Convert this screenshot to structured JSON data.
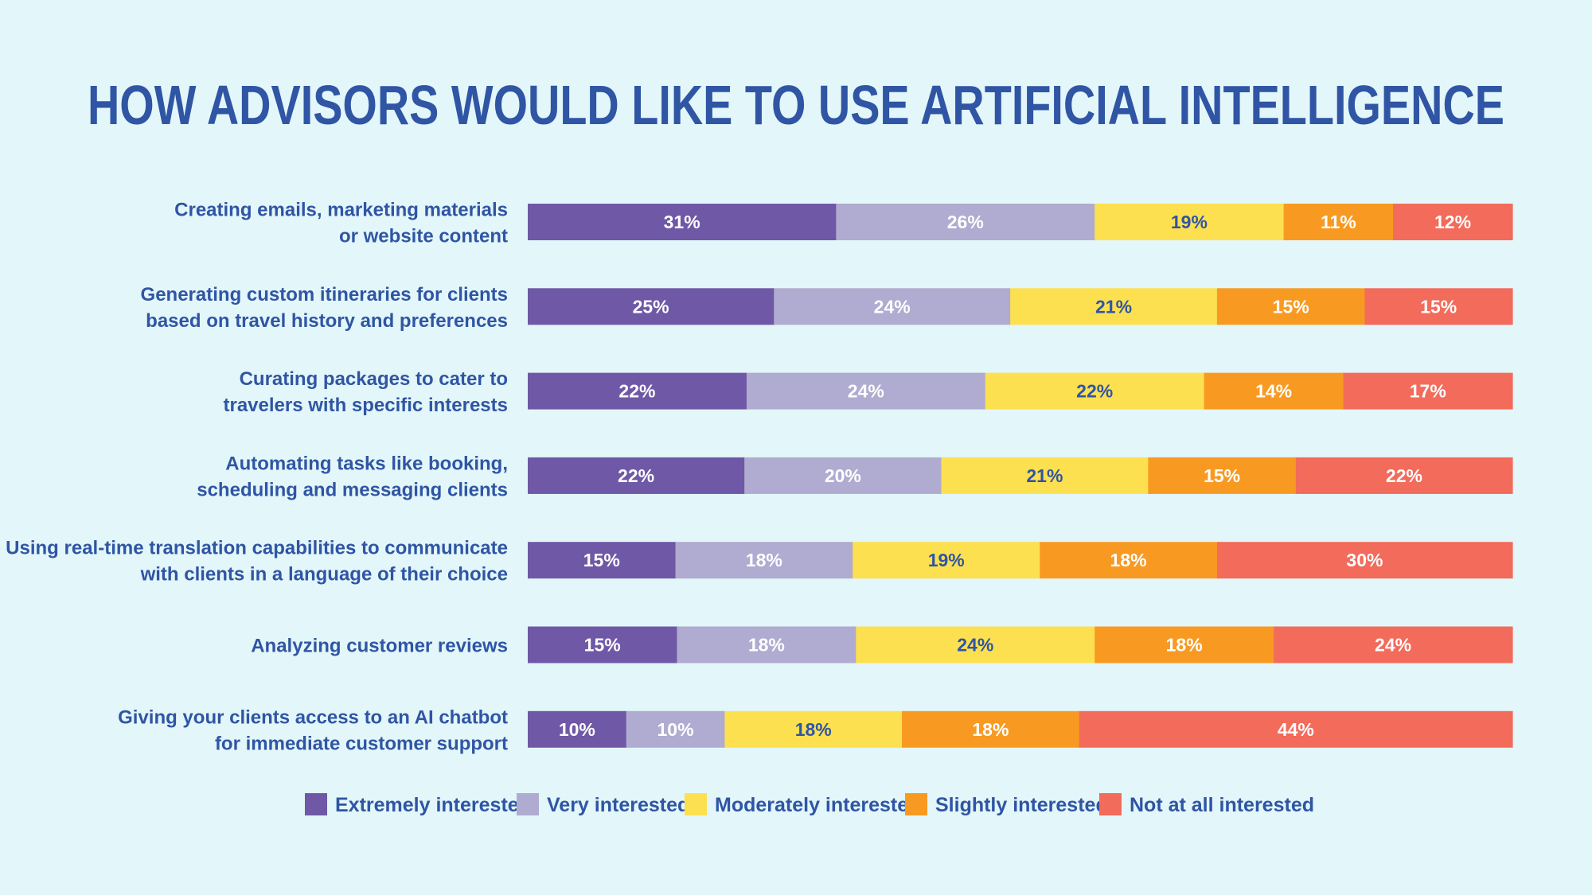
{
  "chart_data": {
    "type": "bar",
    "orientation": "horizontal",
    "stacked": true,
    "title": "HOW ADVISORS WOULD LIKE TO USE ARTIFICIAL INTELLIGENCE",
    "xlim": [
      0,
      100
    ],
    "grid": false,
    "legend_position": "bottom",
    "categories": [
      [
        "Creating emails, marketing materials",
        "or website content"
      ],
      [
        "Generating custom itineraries for clients",
        "based on travel history and preferences"
      ],
      [
        "Curating packages to cater to",
        "travelers with specific interests"
      ],
      [
        "Automating tasks like booking,",
        "scheduling and messaging clients"
      ],
      [
        "Using real-time translation capabilities to communicate",
        "with clients in a language of their choice"
      ],
      [
        "Analyzing customer reviews"
      ],
      [
        "Giving your clients access to an AI chatbot",
        "for immediate customer support"
      ]
    ],
    "series": [
      {
        "name": "Extremely interested",
        "color": "#6f58a6",
        "text_color": "#ffffff",
        "values": [
          31,
          25,
          22,
          22,
          15,
          15,
          10
        ]
      },
      {
        "name": "Very interested",
        "color": "#b0abd0",
        "text_color": "#ffffff",
        "values": [
          26,
          24,
          24,
          20,
          18,
          18,
          10
        ]
      },
      {
        "name": "Moderately interested",
        "color": "#fde050",
        "text_color": "#2f55a4",
        "values": [
          19,
          21,
          22,
          21,
          19,
          24,
          18
        ]
      },
      {
        "name": "Slightly interested",
        "color": "#f89a22",
        "text_color": "#ffffff",
        "values": [
          11,
          15,
          14,
          15,
          18,
          18,
          18
        ]
      },
      {
        "name": "Not at all interested",
        "color": "#f26b5b",
        "text_color": "#ffffff",
        "values": [
          12,
          15,
          17,
          22,
          30,
          24,
          44
        ]
      }
    ],
    "value_suffix": "%"
  }
}
